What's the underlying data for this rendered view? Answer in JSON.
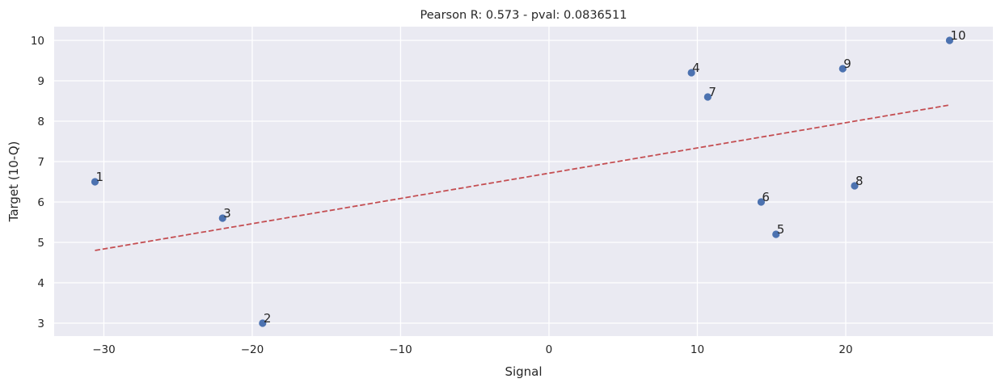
{
  "chart_data": {
    "type": "scatter",
    "title": "Pearson R: 0.573 - pval: 0.0836511",
    "xlabel": "Signal",
    "ylabel": "Target (10-Q)",
    "xlim": [
      -33.35,
      29.92
    ],
    "ylim": [
      2.68,
      10.34
    ],
    "xticks": [
      -30,
      -20,
      -10,
      0,
      10,
      20
    ],
    "xtick_labels": [
      "−30",
      "−20",
      "−10",
      "0",
      "10",
      "20"
    ],
    "yticks": [
      3,
      4,
      5,
      6,
      7,
      8,
      9,
      10
    ],
    "ytick_labels": [
      "3",
      "4",
      "5",
      "6",
      "7",
      "8",
      "9",
      "10"
    ],
    "grid": true,
    "legend": null,
    "points": [
      {
        "label": "1",
        "x": -30.6,
        "y": 6.5
      },
      {
        "label": "2",
        "x": -19.3,
        "y": 3.0
      },
      {
        "label": "3",
        "x": -22.0,
        "y": 5.6
      },
      {
        "label": "4",
        "x": 9.6,
        "y": 9.2
      },
      {
        "label": "5",
        "x": 15.3,
        "y": 5.2
      },
      {
        "label": "6",
        "x": 14.3,
        "y": 6.0
      },
      {
        "label": "7",
        "x": 10.7,
        "y": 8.6
      },
      {
        "label": "8",
        "x": 20.6,
        "y": 6.4
      },
      {
        "label": "9",
        "x": 19.8,
        "y": 9.3
      },
      {
        "label": "10",
        "x": 27.0,
        "y": 10.0
      }
    ],
    "fit_line": {
      "style": "dashed",
      "x": [
        -30.6,
        27.0
      ],
      "y": [
        4.8,
        8.4
      ]
    },
    "colors": {
      "point": "#4c72b0",
      "fit_line": "#c44e52",
      "plot_bg": "#eaeaf2",
      "grid": "#ffffff"
    }
  }
}
